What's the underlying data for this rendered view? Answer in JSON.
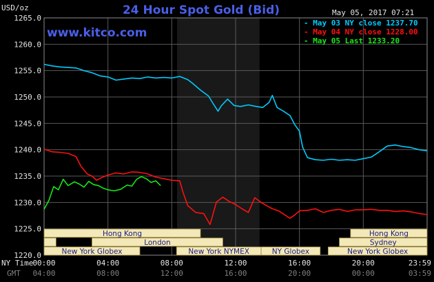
{
  "header": {
    "title": "24 Hour Spot Gold (Bid)",
    "timestamp": "May 05, 2017 07:21",
    "unit_label": "USD/oz",
    "brand": "www.kitco.com"
  },
  "legend": [
    {
      "label": "May 03 NY close 1237.70",
      "color": "#00ccff"
    },
    {
      "label": "May 04 NY close 1228.00",
      "color": "#ff1010"
    },
    {
      "label": "May 05 Last 1233.20",
      "color": "#18e818"
    }
  ],
  "axis": {
    "row1_label": "NY Time",
    "row2_label": "GMT",
    "ny_ticks": [
      "00:00",
      "04:00",
      "08:00",
      "12:00",
      "16:00",
      "20:00",
      "23:59"
    ],
    "gmt_ticks": [
      "04:00",
      "08:00",
      "12:00",
      "16:00",
      "20:00",
      "00:00",
      "03:59"
    ]
  },
  "sessions": [
    {
      "label": "Hong Kong"
    },
    {
      "label": "New York Globex"
    },
    {
      "label": "London"
    },
    {
      "label": "New York NYMEX"
    },
    {
      "label": "NY Globex"
    },
    {
      "label": "Hong Kong"
    },
    {
      "label": "Sydney"
    },
    {
      "label": "New York Globex"
    }
  ],
  "chart_data": {
    "type": "line",
    "title": "24 Hour Spot Gold (Bid)",
    "ylabel": "USD/oz",
    "xlabel": "NY Time",
    "ylim": [
      1220,
      1265
    ],
    "yticks": [
      1220.0,
      1225.0,
      1230.0,
      1235.0,
      1240.0,
      1245.0,
      1250.0,
      1255.0,
      1260.0,
      1265.0
    ],
    "xlim_hours": [
      0,
      24
    ],
    "grid": true,
    "series": [
      {
        "name": "May 03 NY close 1237.70",
        "color": "#00ccff",
        "points": [
          [
            0,
            1256.2
          ],
          [
            0.5,
            1255.9
          ],
          [
            1,
            1255.7
          ],
          [
            1.5,
            1255.6
          ],
          [
            2,
            1255.5
          ],
          [
            2.5,
            1255.0
          ],
          [
            3,
            1254.6
          ],
          [
            3.5,
            1254.0
          ],
          [
            4,
            1253.8
          ],
          [
            4.5,
            1253.2
          ],
          [
            5,
            1253.4
          ],
          [
            5.5,
            1253.6
          ],
          [
            6,
            1253.5
          ],
          [
            6.5,
            1253.8
          ],
          [
            7,
            1253.6
          ],
          [
            7.5,
            1253.7
          ],
          [
            8,
            1253.6
          ],
          [
            8.5,
            1253.9
          ],
          [
            9,
            1253.3
          ],
          [
            9.3,
            1252.6
          ],
          [
            9.8,
            1251.3
          ],
          [
            10.3,
            1250.2
          ],
          [
            10.6,
            1248.7
          ],
          [
            10.9,
            1247.3
          ],
          [
            11.1,
            1248.3
          ],
          [
            11.5,
            1249.6
          ],
          [
            11.9,
            1248.4
          ],
          [
            12.3,
            1248.2
          ],
          [
            12.8,
            1248.5
          ],
          [
            13.3,
            1248.2
          ],
          [
            13.7,
            1248.0
          ],
          [
            14.1,
            1249.0
          ],
          [
            14.3,
            1250.3
          ],
          [
            14.6,
            1248.0
          ],
          [
            15,
            1247.3
          ],
          [
            15.4,
            1246.5
          ],
          [
            15.7,
            1244.8
          ],
          [
            16,
            1243.5
          ],
          [
            16.2,
            1240.5
          ],
          [
            16.5,
            1238.5
          ],
          [
            17,
            1238.1
          ],
          [
            17.5,
            1238.0
          ],
          [
            18,
            1238.2
          ],
          [
            18.5,
            1238.0
          ],
          [
            19,
            1238.1
          ],
          [
            19.5,
            1238.0
          ],
          [
            20,
            1238.3
          ],
          [
            20.5,
            1238.6
          ],
          [
            21,
            1239.6
          ],
          [
            21.5,
            1240.7
          ],
          [
            22,
            1240.9
          ],
          [
            22.5,
            1240.6
          ],
          [
            23,
            1240.4
          ],
          [
            23.5,
            1240.0
          ],
          [
            24,
            1239.8
          ]
        ]
      },
      {
        "name": "May 04 NY close 1228.00",
        "color": "#ff1010",
        "points": [
          [
            0,
            1240.1
          ],
          [
            0.5,
            1239.6
          ],
          [
            1,
            1239.5
          ],
          [
            1.5,
            1239.3
          ],
          [
            2,
            1238.7
          ],
          [
            2.3,
            1236.9
          ],
          [
            2.7,
            1235.4
          ],
          [
            3,
            1235.0
          ],
          [
            3.3,
            1234.2
          ],
          [
            3.6,
            1234.7
          ],
          [
            4,
            1235.2
          ],
          [
            4.5,
            1235.6
          ],
          [
            5,
            1235.4
          ],
          [
            5.5,
            1235.8
          ],
          [
            6,
            1235.7
          ],
          [
            6.5,
            1235.4
          ],
          [
            7,
            1234.8
          ],
          [
            7.5,
            1234.5
          ],
          [
            8,
            1234.2
          ],
          [
            8.5,
            1234.1
          ],
          [
            8.7,
            1232.0
          ],
          [
            9,
            1229.4
          ],
          [
            9.5,
            1228.1
          ],
          [
            10,
            1227.9
          ],
          [
            10.4,
            1225.8
          ],
          [
            10.8,
            1230.1
          ],
          [
            11.2,
            1231.0
          ],
          [
            11.6,
            1230.2
          ],
          [
            12,
            1229.6
          ],
          [
            12.4,
            1228.8
          ],
          [
            12.8,
            1228.1
          ],
          [
            13.2,
            1230.9
          ],
          [
            13.6,
            1230.0
          ],
          [
            14,
            1229.3
          ],
          [
            14.3,
            1228.8
          ],
          [
            14.7,
            1228.4
          ],
          [
            15,
            1227.8
          ],
          [
            15.4,
            1227.0
          ],
          [
            15.7,
            1227.6
          ],
          [
            16,
            1228.4
          ],
          [
            16.5,
            1228.5
          ],
          [
            17,
            1228.8
          ],
          [
            17.5,
            1228.1
          ],
          [
            18,
            1228.5
          ],
          [
            18.5,
            1228.7
          ],
          [
            19,
            1228.3
          ],
          [
            19.5,
            1228.6
          ],
          [
            20,
            1228.6
          ],
          [
            20.5,
            1228.7
          ],
          [
            21,
            1228.5
          ],
          [
            21.5,
            1228.5
          ],
          [
            22,
            1228.3
          ],
          [
            22.5,
            1228.4
          ],
          [
            23,
            1228.2
          ],
          [
            23.5,
            1227.9
          ],
          [
            24,
            1227.7
          ]
        ]
      },
      {
        "name": "May 05 Last 1233.20",
        "color": "#18e818",
        "points": [
          [
            0,
            1228.7
          ],
          [
            0.3,
            1230.4
          ],
          [
            0.6,
            1233.0
          ],
          [
            0.9,
            1232.4
          ],
          [
            1.2,
            1234.4
          ],
          [
            1.5,
            1233.2
          ],
          [
            1.9,
            1233.9
          ],
          [
            2.2,
            1233.5
          ],
          [
            2.5,
            1232.9
          ],
          [
            2.8,
            1234.0
          ],
          [
            3.1,
            1233.4
          ],
          [
            3.4,
            1233.2
          ],
          [
            3.7,
            1232.7
          ],
          [
            4,
            1232.4
          ],
          [
            4.4,
            1232.2
          ],
          [
            4.8,
            1232.5
          ],
          [
            5.2,
            1233.3
          ],
          [
            5.5,
            1233.1
          ],
          [
            5.8,
            1234.4
          ],
          [
            6.1,
            1234.9
          ],
          [
            6.4,
            1234.5
          ],
          [
            6.7,
            1233.8
          ],
          [
            7,
            1234.1
          ],
          [
            7.3,
            1233.2
          ]
        ]
      }
    ]
  }
}
